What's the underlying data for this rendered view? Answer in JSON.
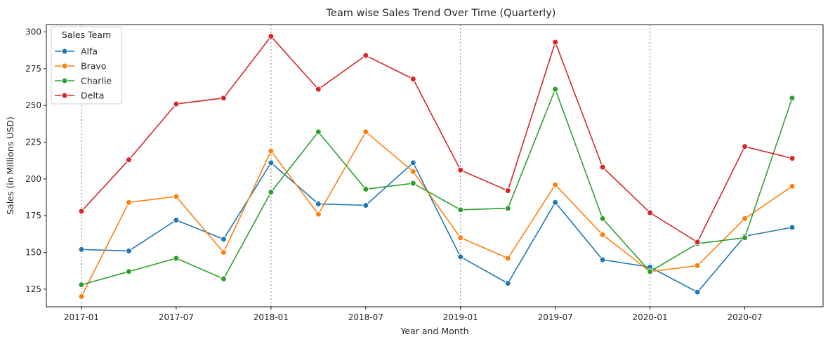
{
  "chart_data": {
    "type": "line",
    "title": "Team wise Sales Trend Over Time (Quarterly)",
    "xlabel": "Year and Month",
    "ylabel": "Sales (in Millions USD)",
    "x": [
      "2017-01",
      "2017-04",
      "2017-07",
      "2017-10",
      "2018-01",
      "2018-04",
      "2018-07",
      "2018-10",
      "2019-01",
      "2019-04",
      "2019-07",
      "2019-10",
      "2020-01",
      "2020-04",
      "2020-07",
      "2020-10"
    ],
    "x_ticks": [
      "2017-01",
      "2017-07",
      "2018-01",
      "2018-07",
      "2019-01",
      "2019-07",
      "2020-01",
      "2020-07"
    ],
    "y_ticks": [
      125,
      150,
      175,
      200,
      225,
      250,
      275,
      300
    ],
    "ylim": [
      113,
      305
    ],
    "year_gridlines": [
      "2017-01",
      "2018-01",
      "2019-01",
      "2020-01"
    ],
    "legend": {
      "title": "Sales Team",
      "placement": "top-left"
    },
    "series": [
      {
        "name": "Alfa",
        "color": "#1f77b4",
        "values": [
          152,
          151,
          172,
          159,
          211,
          183,
          182,
          211,
          147,
          129,
          184,
          145,
          140,
          123,
          161,
          167
        ]
      },
      {
        "name": "Bravo",
        "color": "#ff7f0e",
        "values": [
          120,
          184,
          188,
          150,
          219,
          176,
          232,
          205,
          160,
          146,
          196,
          162,
          137,
          141,
          173,
          195
        ]
      },
      {
        "name": "Charlie",
        "color": "#2ca02c",
        "values": [
          128,
          137,
          146,
          132,
          191,
          232,
          193,
          197,
          179,
          180,
          261,
          173,
          137,
          156,
          160,
          255
        ]
      },
      {
        "name": "Delta",
        "color": "#d62728",
        "values": [
          178,
          213,
          251,
          255,
          297,
          261,
          284,
          268,
          206,
          192,
          293,
          208,
          177,
          157,
          222,
          214
        ]
      }
    ]
  }
}
